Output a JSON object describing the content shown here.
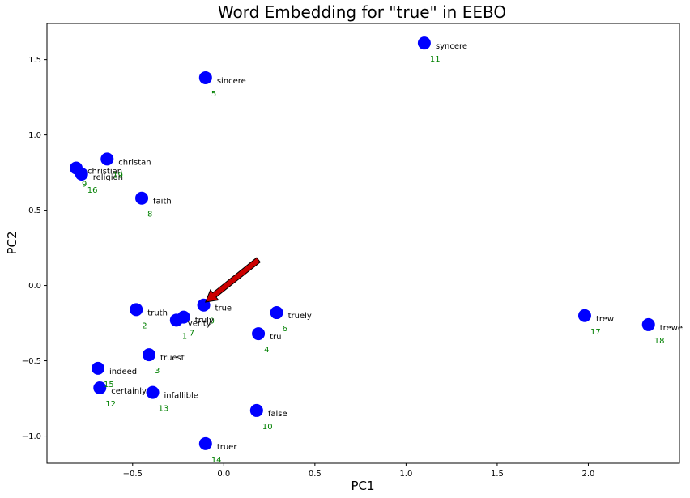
{
  "chart_data": {
    "type": "scatter",
    "title": "Word Embedding for \"true\" in EEBO",
    "xlabel": "PC1",
    "ylabel": "PC2",
    "xlim": [
      -0.97,
      2.5
    ],
    "ylim": [
      -1.18,
      1.74
    ],
    "xticks": [
      -0.5,
      0.0,
      0.5,
      1.0,
      1.5,
      2.0
    ],
    "xtick_labels": [
      "−0.5",
      "0.0",
      "0.5",
      "1.0",
      "1.5",
      "2.0"
    ],
    "yticks": [
      -1.0,
      -0.5,
      0.0,
      0.5,
      1.0,
      1.5
    ],
    "ytick_labels": [
      "−1.0",
      "−0.5",
      "0.0",
      "0.5",
      "1.0",
      "1.5"
    ],
    "grid": false,
    "point_color": "#0000ff",
    "rank_color": "#008000",
    "target_color": "#ff0000",
    "arrow_color": "#cc0000",
    "points": [
      {
        "word": "true",
        "rank": "0",
        "x": -0.11,
        "y": -0.13,
        "target": true
      },
      {
        "word": "verity",
        "rank": "1",
        "x": -0.26,
        "y": -0.23
      },
      {
        "word": "truth",
        "rank": "2",
        "x": -0.48,
        "y": -0.16
      },
      {
        "word": "truest",
        "rank": "3",
        "x": -0.41,
        "y": -0.46
      },
      {
        "word": "tru",
        "rank": "4",
        "x": 0.19,
        "y": -0.32
      },
      {
        "word": "sincere",
        "rank": "5",
        "x": -0.1,
        "y": 1.38
      },
      {
        "word": "truely",
        "rank": "6",
        "x": 0.29,
        "y": -0.18
      },
      {
        "word": "truly",
        "rank": "7",
        "x": -0.22,
        "y": -0.21
      },
      {
        "word": "faith",
        "rank": "8",
        "x": -0.45,
        "y": 0.58
      },
      {
        "word": "christian",
        "rank": "9",
        "x": -0.81,
        "y": 0.78
      },
      {
        "word": "false",
        "rank": "10",
        "x": 0.18,
        "y": -0.83
      },
      {
        "word": "syncere",
        "rank": "11",
        "x": 1.1,
        "y": 1.61
      },
      {
        "word": "certainly",
        "rank": "12",
        "x": -0.68,
        "y": -0.68
      },
      {
        "word": "infallible",
        "rank": "13",
        "x": -0.39,
        "y": -0.71
      },
      {
        "word": "truer",
        "rank": "14",
        "x": -0.1,
        "y": -1.05
      },
      {
        "word": "indeed",
        "rank": "15",
        "x": -0.69,
        "y": -0.55
      },
      {
        "word": "religion",
        "rank": "16",
        "x": -0.78,
        "y": 0.74
      },
      {
        "word": "trew",
        "rank": "17",
        "x": 1.98,
        "y": -0.2
      },
      {
        "word": "trewe",
        "rank": "18",
        "x": 2.33,
        "y": -0.26
      },
      {
        "word": "christan",
        "rank": "19",
        "x": -0.64,
        "y": 0.84
      }
    ],
    "arrow": {
      "from": [
        0.19,
        0.17
      ],
      "to": [
        -0.1,
        -0.11
      ]
    }
  }
}
